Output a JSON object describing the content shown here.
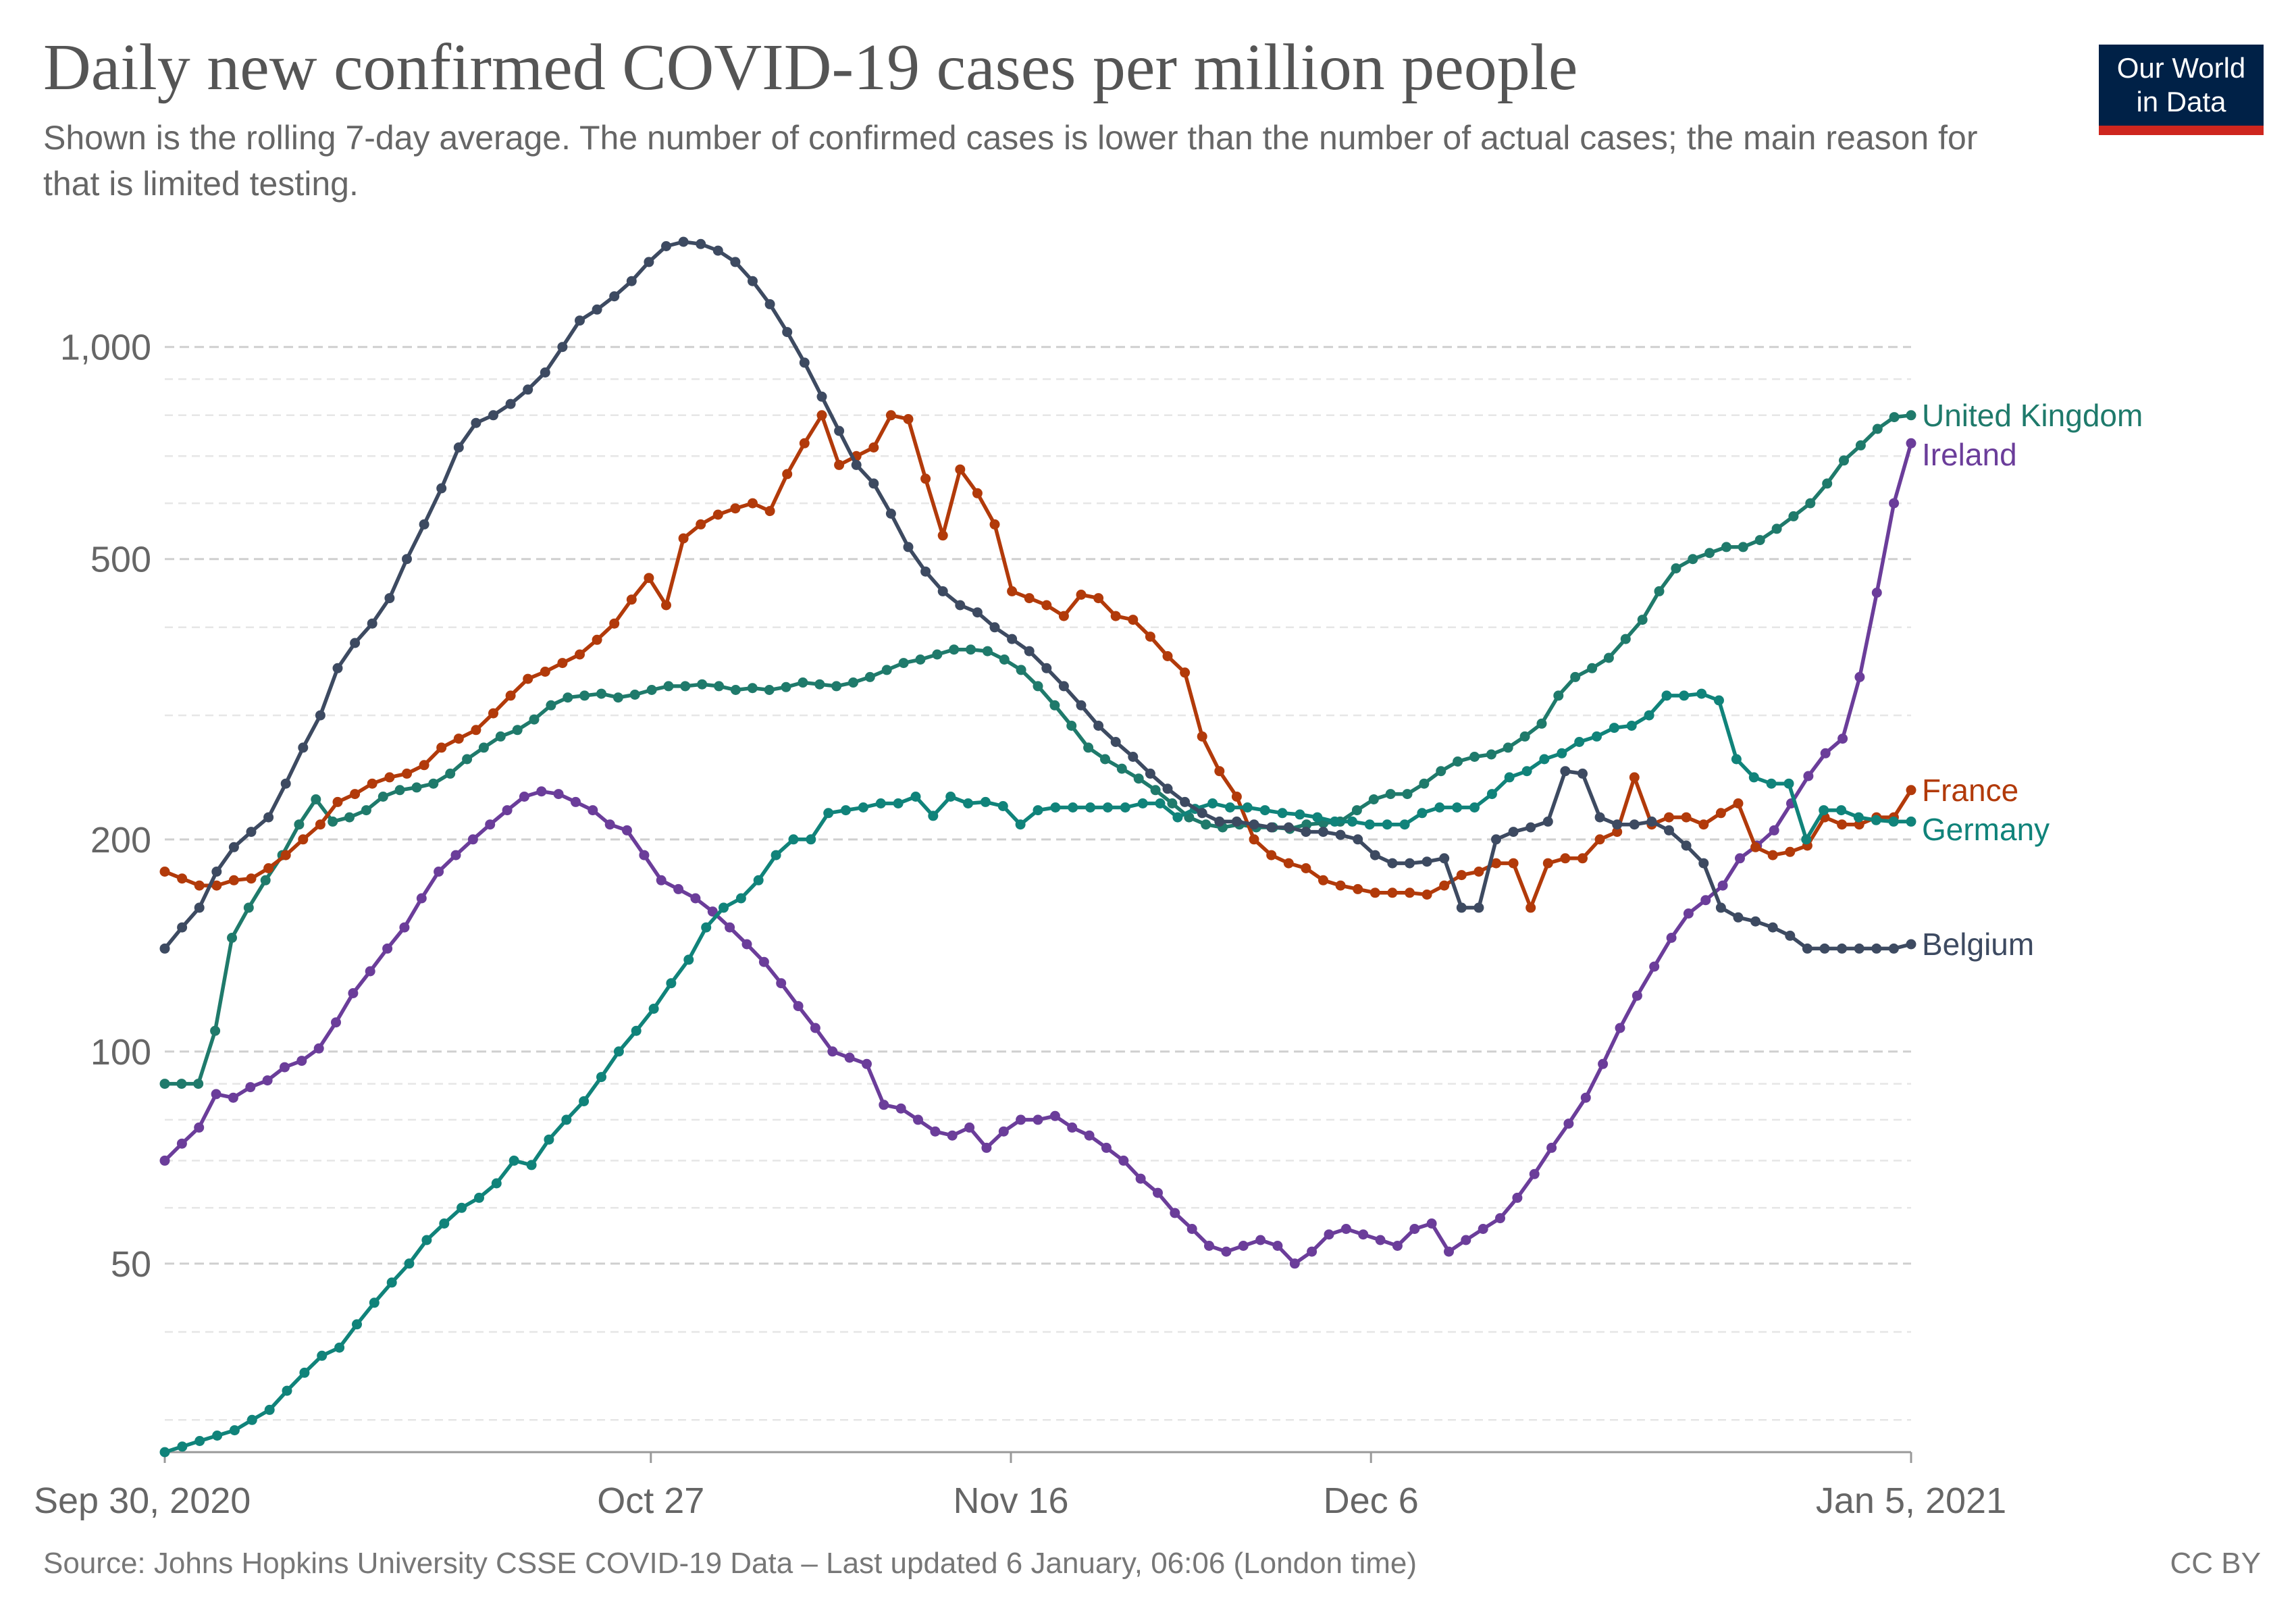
{
  "header": {
    "title": "Daily new confirmed COVID-19 cases per million people",
    "subtitle": "Shown is the rolling 7-day average. The number of confirmed cases is lower than the number of actual cases; the main reason for that is limited testing.",
    "logo_line1": "Our World",
    "logo_line2": "in Data"
  },
  "footer": {
    "source": "Source: Johns Hopkins University CSSE COVID-19 Data – Last updated 6 January, 06:06 (London time)",
    "license": "CC BY"
  },
  "chart_data": {
    "type": "line",
    "title": "Daily new confirmed COVID-19 cases per million people",
    "yscale": "log",
    "ylim": [
      27,
      1500
    ],
    "y_ticks": [
      {
        "value": 50,
        "label": "50"
      },
      {
        "value": 100,
        "label": "100"
      },
      {
        "value": 200,
        "label": "200"
      },
      {
        "value": 500,
        "label": "500"
      },
      {
        "value": 1000,
        "label": "1,000"
      }
    ],
    "y_minor_gridlines": [
      30,
      40,
      60,
      70,
      80,
      90,
      300,
      400,
      600,
      700,
      800,
      900
    ],
    "xlim": [
      "2020-09-30",
      "2021-01-05"
    ],
    "x_ticks": [
      {
        "date": "2020-09-30",
        "label": "Sep 30, 2020"
      },
      {
        "date": "2020-10-27",
        "label": "Oct 27"
      },
      {
        "date": "2020-11-16",
        "label": "Nov 16"
      },
      {
        "date": "2020-12-06",
        "label": "Dec 6"
      },
      {
        "date": "2021-01-05",
        "label": "Jan 5, 2021"
      }
    ],
    "start_date": "2020-09-30",
    "grid": "horizontal dashed",
    "legend": "inline labels at line ends (right)",
    "series": [
      {
        "name": "United Kingdom",
        "color": "#1f7a6b",
        "values": [
          90,
          90,
          90,
          107,
          145,
          160,
          175,
          190,
          210,
          228,
          212,
          215,
          220,
          230,
          235,
          237,
          240,
          248,
          260,
          270,
          280,
          286,
          296,
          310,
          318,
          320,
          322,
          318,
          321,
          326,
          330,
          330,
          332,
          330,
          326,
          328,
          326,
          329,
          334,
          332,
          330,
          334,
          340,
          348,
          356,
          360,
          366,
          372,
          372,
          370,
          360,
          348,
          330,
          310,
          290,
          270,
          260,
          252,
          244,
          235,
          225,
          215,
          210,
          208,
          210,
          208,
          208,
          207,
          210,
          211,
          212,
          220,
          228,
          232,
          232,
          240,
          250,
          258,
          262,
          264,
          270,
          280,
          292,
          320,
          340,
          350,
          362,
          385,
          410,
          450,
          485,
          500,
          510,
          520,
          520,
          532,
          552,
          575,
          600,
          640,
          690,
          725,
          765,
          795,
          800
        ]
      },
      {
        "name": "Ireland",
        "color": "#6b3d9a",
        "values": [
          70,
          74,
          78,
          87,
          86,
          89,
          91,
          95,
          97,
          101,
          110,
          121,
          130,
          140,
          150,
          165,
          180,
          190,
          200,
          210,
          220,
          230,
          234,
          232,
          226,
          220,
          210,
          206,
          190,
          175,
          170,
          165,
          158,
          150,
          142,
          134,
          125,
          116,
          108,
          100,
          98,
          96,
          84,
          83,
          80,
          77,
          76,
          78,
          73,
          77,
          80,
          80,
          81,
          78,
          76,
          73,
          70,
          66,
          63,
          59,
          56,
          53,
          52,
          53,
          54,
          53,
          50,
          52,
          55,
          56,
          55,
          54,
          53,
          56,
          57,
          52,
          54,
          56,
          58,
          62,
          67,
          73,
          79,
          86,
          96,
          108,
          120,
          132,
          145,
          157,
          164,
          172,
          188,
          196,
          206,
          225,
          246,
          265,
          278,
          340,
          448,
          600,
          730
        ]
      },
      {
        "name": "France",
        "color": "#b23a0a",
        "values": [
          180,
          176,
          172,
          172,
          175,
          176,
          182,
          190,
          200,
          210,
          226,
          232,
          240,
          245,
          248,
          255,
          270,
          278,
          286,
          302,
          320,
          338,
          346,
          356,
          366,
          384,
          405,
          438,
          470,
          430,
          535,
          560,
          578,
          590,
          600,
          585,
          660,
          730,
          800,
          680,
          700,
          720,
          800,
          790,
          650,
          540,
          670,
          620,
          560,
          450,
          440,
          430,
          415,
          445,
          440,
          415,
          410,
          388,
          364,
          345,
          280,
          250,
          230,
          200,
          190,
          185,
          182,
          175,
          172,
          170,
          168,
          168,
          168,
          167,
          172,
          178,
          180,
          185,
          185,
          160,
          185,
          188,
          188,
          200,
          205,
          245,
          210,
          215,
          215,
          210,
          218,
          225,
          195,
          190,
          192,
          196,
          215,
          210,
          210,
          215,
          215,
          235
        ]
      },
      {
        "name": "Germany",
        "color": "#10837a",
        "values": [
          27,
          27.5,
          28,
          28.5,
          29,
          30,
          31,
          33,
          35,
          37,
          38,
          41,
          44,
          47,
          50,
          54,
          57,
          60,
          62,
          65,
          70,
          69,
          75,
          80,
          85,
          92,
          100,
          107,
          115,
          125,
          135,
          150,
          160,
          165,
          175,
          190,
          200,
          200,
          218,
          220,
          222,
          225,
          225,
          230,
          216,
          230,
          225,
          226,
          223,
          210,
          220,
          222,
          222,
          222,
          222,
          222,
          225,
          225,
          215,
          221,
          225,
          222,
          222,
          220,
          218,
          217,
          215,
          212,
          212,
          210,
          210,
          210,
          218,
          222,
          222,
          222,
          232,
          245,
          250,
          260,
          265,
          275,
          280,
          288,
          290,
          300,
          320,
          320,
          322,
          315,
          260,
          245,
          240,
          240,
          200,
          220,
          220,
          215,
          213,
          212,
          212
        ]
      },
      {
        "name": "Belgium",
        "color": "#3d4a61",
        "values": [
          140,
          150,
          160,
          180,
          195,
          205,
          215,
          240,
          270,
          300,
          350,
          380,
          405,
          440,
          500,
          560,
          630,
          720,
          780,
          800,
          830,
          870,
          920,
          1000,
          1090,
          1130,
          1180,
          1240,
          1320,
          1390,
          1410,
          1400,
          1370,
          1320,
          1240,
          1150,
          1050,
          950,
          850,
          760,
          680,
          640,
          580,
          520,
          480,
          450,
          430,
          420,
          400,
          385,
          370,
          350,
          330,
          310,
          290,
          275,
          262,
          248,
          236,
          226,
          218,
          212,
          212,
          210,
          208,
          208,
          205,
          205,
          203,
          200,
          190,
          185,
          185,
          186,
          188,
          160,
          160,
          200,
          205,
          208,
          212,
          250,
          248,
          215,
          210,
          210,
          212,
          206,
          196,
          185,
          160,
          155,
          153,
          150,
          146,
          140,
          140,
          140,
          140,
          140,
          140,
          142
        ]
      }
    ]
  }
}
